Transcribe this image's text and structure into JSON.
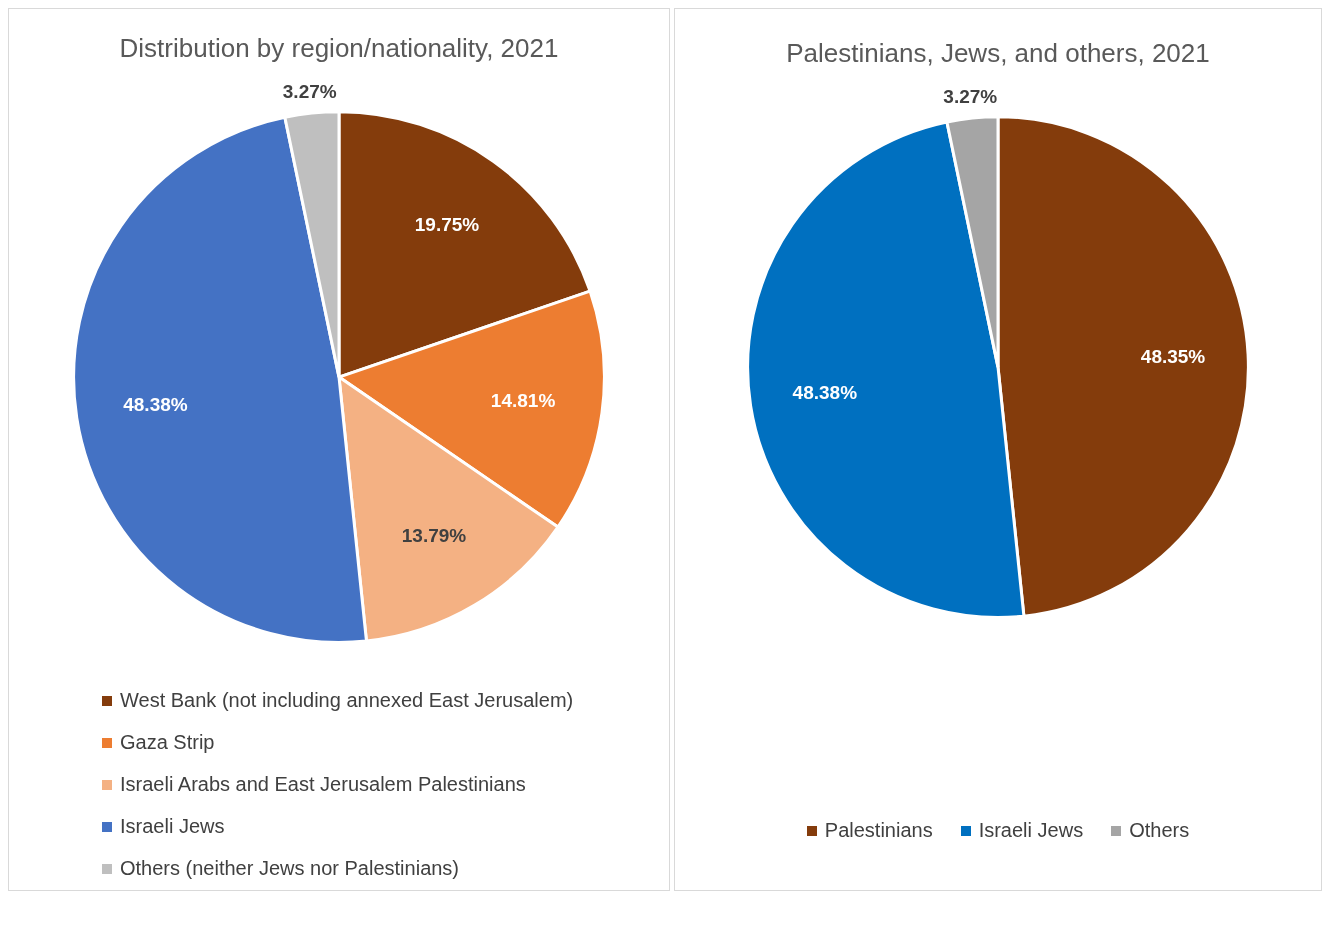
{
  "chart_data": [
    {
      "type": "pie",
      "title": "Distribution by region/nationality, 2021",
      "categories": [
        "West Bank (not including annexed East Jerusalem)",
        "Gaza Strip",
        "Israeli Arabs and East Jerusalem Palestinians",
        "Israeli Jews",
        "Others (neither Jews nor Palestinians)"
      ],
      "values": [
        19.75,
        14.81,
        13.79,
        48.38,
        3.27
      ],
      "value_labels": [
        "19.75%",
        "14.81%",
        "13.79%",
        "48.38%",
        "3.27%"
      ],
      "colors": [
        "#843c0c",
        "#ed7d31",
        "#f4b183",
        "#4472c4",
        "#bfbfbf"
      ],
      "legend": "bottom"
    },
    {
      "type": "pie",
      "title": "Palestinians, Jews, and others, 2021",
      "categories": [
        "Palestinians",
        "Israeli Jews",
        "Others"
      ],
      "values": [
        48.35,
        48.38,
        3.27
      ],
      "value_labels": [
        "48.35%",
        "48.38%",
        "3.27%"
      ],
      "colors": [
        "#843c0c",
        "#0070c0",
        "#a5a5a5"
      ],
      "legend": "bottom"
    }
  ]
}
